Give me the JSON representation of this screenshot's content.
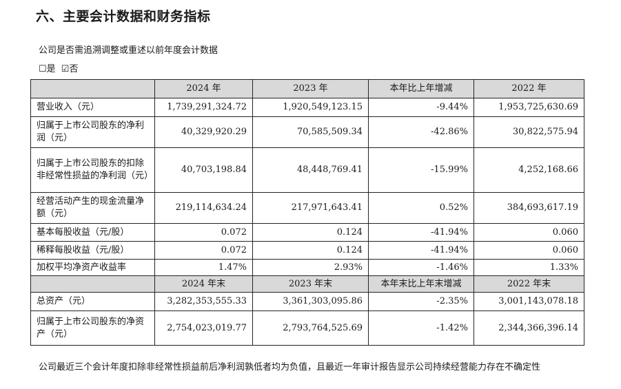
{
  "heading": "六、主要会计数据和财务指标",
  "question": "公司是否需追溯调整或重述以前年度会计数据",
  "options": {
    "yes": "☐是",
    "no": "☑否"
  },
  "table": {
    "header1": [
      "",
      "2024 年",
      "2023 年",
      "本年比上年增减",
      "2022 年"
    ],
    "rows1": [
      [
        "营业收入（元）",
        "1,739,291,324.72",
        "1,920,549,123.15",
        "-9.44%",
        "1,953,725,630.69"
      ],
      [
        "归属于上市公司股东的净利润（元）",
        "40,329,920.29",
        "70,585,509.34",
        "-42.86%",
        "30,822,575.94"
      ],
      [
        "归属于上市公司股东的扣除非经常性损益的净利润（元）",
        "40,703,198.84",
        "48,448,769.41",
        "-15.99%",
        "4,252,168.66"
      ],
      [
        "经营活动产生的现金流量净额（元）",
        "219,114,634.24",
        "217,971,643.41",
        "0.52%",
        "384,693,617.19"
      ],
      [
        "基本每股收益（元/股）",
        "0.072",
        "0.124",
        "-41.94%",
        "0.060"
      ],
      [
        "稀释每股收益（元/股）",
        "0.072",
        "0.124",
        "-41.94%",
        "0.060"
      ],
      [
        "加权平均净资产收益率",
        "1.47%",
        "2.93%",
        "-1.46%",
        "1.33%"
      ]
    ],
    "header2": [
      "",
      "2024 年末",
      "2023 年末",
      "本年末比上年末增减",
      "2022 年末"
    ],
    "rows2": [
      [
        "总资产（元）",
        "3,282,353,555.33",
        "3,361,303,095.86",
        "-2.35%",
        "3,001,143,078.18"
      ],
      [
        "归属于上市公司股东的净资产（元）",
        "2,754,023,019.77",
        "2,793,764,525.69",
        "-1.42%",
        "2,344,366,396.14"
      ]
    ]
  },
  "note": "公司最近三个会计年度扣除非经常性损益前后净利润孰低者均为负值，且最近一年审计报告显示公司持续经营能力存在不确定性"
}
